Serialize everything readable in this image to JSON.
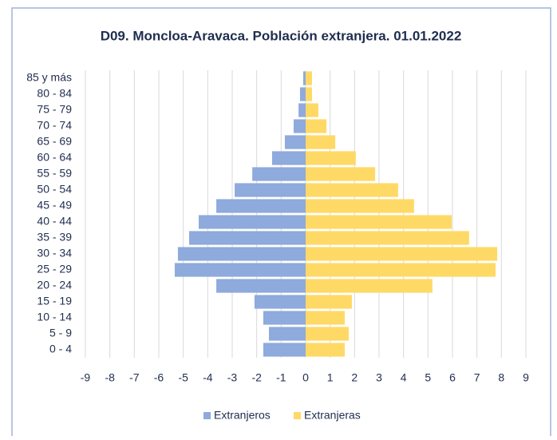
{
  "chart_data": {
    "type": "pyramid",
    "title": "D09. Moncloa-Aravaca. Población extranjera. 01.01.2022",
    "categories": [
      "0 - 4",
      "5 - 9",
      "10 - 14",
      "15 - 19",
      "20 - 24",
      "25 - 29",
      "30 - 34",
      "35 - 39",
      "40 - 44",
      "45 - 49",
      "50 - 54",
      "55 - 59",
      "60 - 64",
      "65 - 69",
      "70 - 74",
      "75 - 79",
      "80 - 84",
      "85 y más"
    ],
    "series": [
      {
        "name": "Extranjeros",
        "color": "#8faadc",
        "values": [
          -1.73,
          -1.5,
          -1.73,
          -2.09,
          -3.65,
          -5.35,
          -5.22,
          -4.76,
          -4.37,
          -3.65,
          -2.9,
          -2.18,
          -1.37,
          -0.85,
          -0.49,
          -0.29,
          -0.23,
          -0.1
        ]
      },
      {
        "name": "Extranjeras",
        "color": "#ffd966",
        "values": [
          1.6,
          1.76,
          1.6,
          1.89,
          5.18,
          7.76,
          7.83,
          6.68,
          5.97,
          4.43,
          3.78,
          2.84,
          2.05,
          1.21,
          0.85,
          0.52,
          0.26,
          0.26
        ]
      }
    ],
    "xlim": [
      -9,
      9
    ],
    "xticks": [
      -9,
      -8,
      -7,
      -6,
      -5,
      -4,
      -3,
      -2,
      -1,
      0,
      1,
      2,
      3,
      4,
      5,
      6,
      7,
      8,
      9
    ],
    "grid": true
  }
}
